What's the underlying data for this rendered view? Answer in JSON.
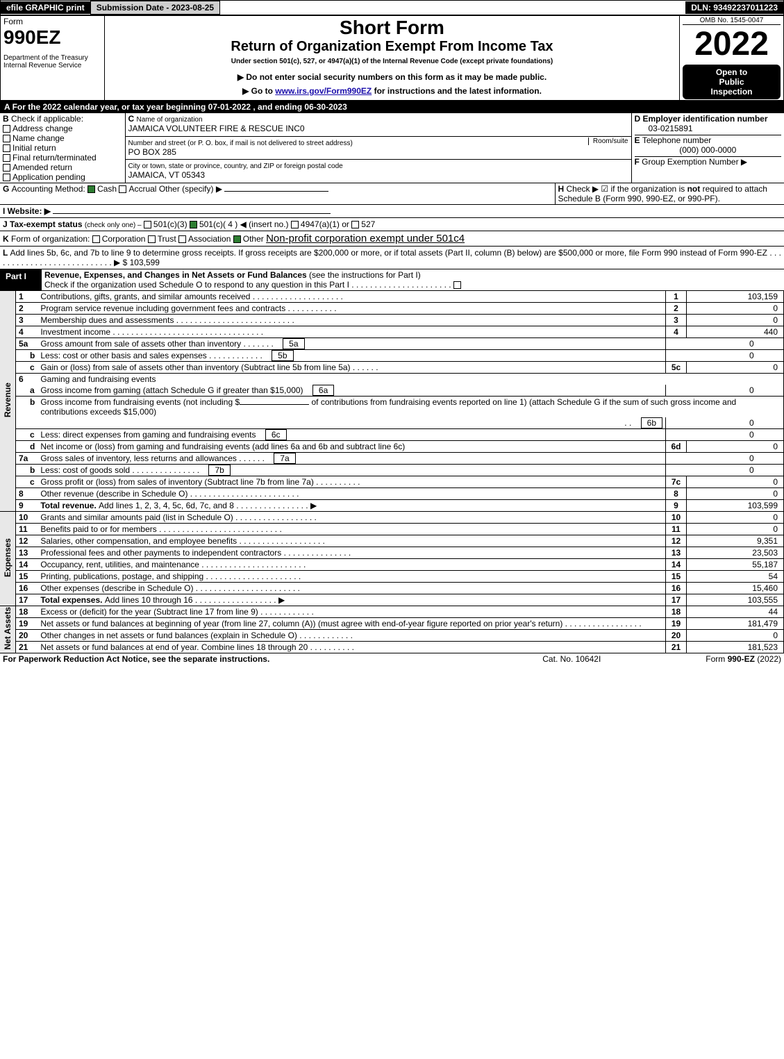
{
  "topbar": {
    "efile": "efile GRAPHIC print",
    "submission_label": "Submission Date - 2023-08-25",
    "dln_label": "DLN: 93492237011223"
  },
  "header": {
    "form_word": "Form",
    "form_number": "990EZ",
    "dept": "Department of the Treasury",
    "irs": "Internal Revenue Service",
    "title1": "Short Form",
    "title2": "Return of Organization Exempt From Income Tax",
    "subtitle": "Under section 501(c), 527, or 4947(a)(1) of the Internal Revenue Code (except private foundations)",
    "note1": "▶ Do not enter social security numbers on this form as it may be made public.",
    "note2_pre": "▶ Go to ",
    "note2_link": "www.irs.gov/Form990EZ",
    "note2_post": " for instructions and the latest information.",
    "omb": "OMB No. 1545-0047",
    "year": "2022",
    "inspect1": "Open to",
    "inspect2": "Public",
    "inspect3": "Inspection"
  },
  "sectionA": {
    "text": "For the 2022 calendar year, or tax year beginning 07-01-2022 , and ending 06-30-2023"
  },
  "sectionB": {
    "label": "Check if applicable:",
    "items": [
      "Address change",
      "Name change",
      "Initial return",
      "Final return/terminated",
      "Amended return",
      "Application pending"
    ]
  },
  "sectionC": {
    "label": "Name of organization",
    "value": "JAMAICA VOLUNTEER FIRE & RESCUE INC0",
    "addr_label": "Number and street (or P. O. box, if mail is not delivered to street address)",
    "addr": "PO BOX 285",
    "room_label": "Room/suite",
    "city_label": "City or town, state or province, country, and ZIP or foreign postal code",
    "city": "JAMAICA, VT  05343"
  },
  "sectionD": {
    "label": "Employer identification number",
    "value": "03-0215891"
  },
  "sectionE": {
    "label": "Telephone number",
    "value": "(000) 000-0000"
  },
  "sectionF": {
    "label": "Group Exemption Number",
    "arrow": "▶"
  },
  "sectionG": {
    "label": "Accounting Method:",
    "opts": [
      "Cash",
      "Accrual",
      "Other (specify) ▶"
    ],
    "checked": 0
  },
  "sectionH": {
    "text": "Check ▶ ☑ if the organization is ",
    "not": "not",
    "rest": " required to attach Schedule B (Form 990, 990-EZ, or 990-PF)."
  },
  "sectionI": {
    "label": "Website: ▶"
  },
  "sectionJ": {
    "label": "Tax-exempt status",
    "sub": "(check only one) ‒",
    "opts": [
      "501(c)(3)",
      "501(c)( 4 ) ◀ (insert no.)",
      "4947(a)(1) or",
      "527"
    ],
    "checked": 1
  },
  "sectionK": {
    "label": "Form of organization:",
    "opts": [
      "Corporation",
      "Trust",
      "Association",
      "Other"
    ],
    "other_value": "Non-profit corporation exempt under 501c4",
    "checked": 3
  },
  "sectionL": {
    "text": "Add lines 5b, 6c, and 7b to line 9 to determine gross receipts. If gross receipts are $200,000 or more, or if total assets (Part II, column (B) below) are $500,000 or more, file Form 990 instead of Form 990-EZ",
    "amount": "$ 103,599"
  },
  "part1": {
    "title": "Revenue, Expenses, and Changes in Net Assets or Fund Balances",
    "note": "(see the instructions for Part I)",
    "check_note": "Check if the organization used Schedule O to respond to any question in this Part I",
    "sidebar_rev": "Revenue",
    "sidebar_exp": "Expenses",
    "sidebar_na": "Net Assets"
  },
  "lines": {
    "1": {
      "label": "Contributions, gifts, grants, and similar amounts received",
      "num": "1",
      "val": "103,159"
    },
    "2": {
      "label": "Program service revenue including government fees and contracts",
      "num": "2",
      "val": "0"
    },
    "3": {
      "label": "Membership dues and assessments",
      "num": "3",
      "val": "0"
    },
    "4": {
      "label": "Investment income",
      "num": "4",
      "val": "440"
    },
    "5a": {
      "label": "Gross amount from sale of assets other than inventory",
      "sub": "5a",
      "subval": "0"
    },
    "5b": {
      "label": "Less: cost or other basis and sales expenses",
      "sub": "5b",
      "subval": "0"
    },
    "5c": {
      "label": "Gain or (loss) from sale of assets other than inventory (Subtract line 5b from line 5a)",
      "num": "5c",
      "val": "0"
    },
    "6": {
      "label": "Gaming and fundraising events"
    },
    "6a": {
      "label": "Gross income from gaming (attach Schedule G if greater than $15,000)",
      "sub": "6a",
      "subval": "0"
    },
    "6b_pre": "Gross income from fundraising events (not including $",
    "6b_post": "of contributions from fundraising events reported on line 1) (attach Schedule G if the sum of such gross income and contributions exceeds $15,000)",
    "6b": {
      "sub": "6b",
      "subval": "0"
    },
    "6c": {
      "label": "Less: direct expenses from gaming and fundraising events",
      "sub": "6c",
      "subval": "0"
    },
    "6d": {
      "label": "Net income or (loss) from gaming and fundraising events (add lines 6a and 6b and subtract line 6c)",
      "num": "6d",
      "val": "0"
    },
    "7a": {
      "label": "Gross sales of inventory, less returns and allowances",
      "sub": "7a",
      "subval": "0"
    },
    "7b": {
      "label": "Less: cost of goods sold",
      "sub": "7b",
      "subval": "0"
    },
    "7c": {
      "label": "Gross profit or (loss) from sales of inventory (Subtract line 7b from line 7a)",
      "num": "7c",
      "val": "0"
    },
    "8": {
      "label": "Other revenue (describe in Schedule O)",
      "num": "8",
      "val": "0"
    },
    "9": {
      "label": "Total revenue. ",
      "label2": "Add lines 1, 2, 3, 4, 5c, 6d, 7c, and 8",
      "num": "9",
      "val": "103,599"
    },
    "10": {
      "label": "Grants and similar amounts paid (list in Schedule O)",
      "num": "10",
      "val": "0"
    },
    "11": {
      "label": "Benefits paid to or for members",
      "num": "11",
      "val": "0"
    },
    "12": {
      "label": "Salaries, other compensation, and employee benefits",
      "num": "12",
      "val": "9,351"
    },
    "13": {
      "label": "Professional fees and other payments to independent contractors",
      "num": "13",
      "val": "23,503"
    },
    "14": {
      "label": "Occupancy, rent, utilities, and maintenance",
      "num": "14",
      "val": "55,187"
    },
    "15": {
      "label": "Printing, publications, postage, and shipping",
      "num": "15",
      "val": "54"
    },
    "16": {
      "label": "Other expenses (describe in Schedule O)",
      "num": "16",
      "val": "15,460"
    },
    "17": {
      "label": "Total expenses. ",
      "label2": "Add lines 10 through 16",
      "num": "17",
      "val": "103,555"
    },
    "18": {
      "label": "Excess or (deficit) for the year (Subtract line 17 from line 9)",
      "num": "18",
      "val": "44"
    },
    "19": {
      "label": "Net assets or fund balances at beginning of year (from line 27, column (A)) (must agree with end-of-year figure reported on prior year's return)",
      "num": "19",
      "val": "181,479"
    },
    "20": {
      "label": "Other changes in net assets or fund balances (explain in Schedule O)",
      "num": "20",
      "val": "0"
    },
    "21": {
      "label": "Net assets or fund balances at end of year. Combine lines 18 through 20",
      "num": "21",
      "val": "181,523"
    }
  },
  "footer": {
    "left": "For Paperwork Reduction Act Notice, see the separate instructions.",
    "mid": "Cat. No. 10642I",
    "right_pre": "Form ",
    "right_form": "990-EZ",
    "right_post": " (2022)"
  }
}
